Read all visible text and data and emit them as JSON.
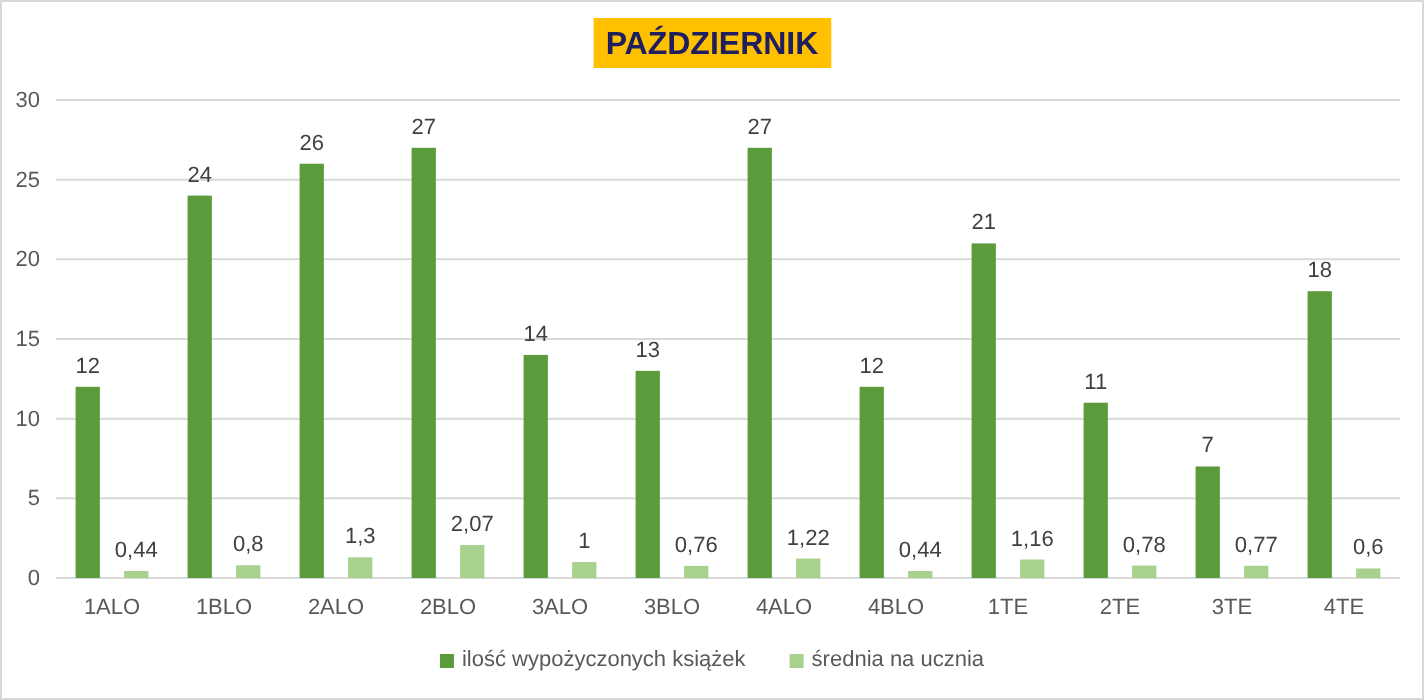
{
  "chart_data": {
    "type": "bar",
    "title": "PAŹDZIERNIK",
    "categories": [
      "1ALO",
      "1BLO",
      "2ALO",
      "2BLO",
      "3ALO",
      "3BLO",
      "4ALO",
      "4BLO",
      "1TE",
      "2TE",
      "3TE",
      "4TE"
    ],
    "series": [
      {
        "name": "ilość wypożyczonych książek",
        "color": "#5b9b3c",
        "values": [
          12,
          24,
          26,
          27,
          14,
          13,
          27,
          12,
          21,
          11,
          7,
          18
        ],
        "value_labels": [
          "12",
          "24",
          "26",
          "27",
          "14",
          "13",
          "27",
          "12",
          "21",
          "11",
          "7",
          "18"
        ]
      },
      {
        "name": "średnia na ucznia",
        "color": "#a9d18e",
        "values": [
          0.44,
          0.8,
          1.3,
          2.07,
          1,
          0.76,
          1.22,
          0.44,
          1.16,
          0.78,
          0.77,
          0.6
        ],
        "value_labels": [
          "0,44",
          "0,8",
          "1,3",
          "2,07",
          "1",
          "0,76",
          "1,22",
          "0,44",
          "1,16",
          "0,78",
          "0,77",
          "0,6"
        ]
      }
    ],
    "ylim": [
      0,
      30
    ],
    "yticks": [
      0,
      5,
      10,
      15,
      20,
      25,
      30
    ],
    "grid": "y",
    "legend": "bottom"
  }
}
